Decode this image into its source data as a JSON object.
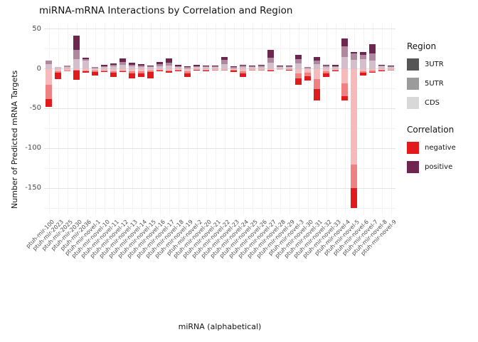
{
  "chart_data": {
    "type": "bar",
    "stacked": true,
    "title": "miRNA-mRNA Interactions by Correlation and Region",
    "xlabel": "miRNA (alphabetical)",
    "ylabel": "Number of Predicted mRNA Targets",
    "y_ticks": [
      50,
      0,
      -50,
      -100,
      -150
    ],
    "y_minor_ticks": [
      25,
      -25,
      -75,
      -125,
      -175
    ],
    "ylim": [
      -183,
      57
    ],
    "grid": true,
    "legend_position": "right",
    "categories": [
      "ptuh-mir-100",
      "ptuh-mir-2023",
      "ptuh-mir-2025",
      "ptuh-mir-2030",
      "ptuh-mir-2036",
      "ptuh-mir-novel-1",
      "ptuh-mir-novel-10",
      "ptuh-mir-novel-11",
      "ptuh-mir-novel-12",
      "ptuh-mir-novel-13",
      "ptuh-mir-novel-14",
      "ptuh-mir-novel-15",
      "ptuh-mir-novel-16",
      "ptuh-mir-novel-17",
      "ptuh-mir-novel-18",
      "ptuh-mir-novel-19",
      "ptuh-mir-novel-2",
      "ptuh-mir-novel-20",
      "ptuh-mir-novel-21",
      "ptuh-mir-novel-22",
      "ptuh-mir-novel-23",
      "ptuh-mir-novel-24",
      "ptuh-mir-novel-25",
      "ptuh-mir-novel-26",
      "ptuh-mir-novel-27",
      "ptuh-mir-novel-28",
      "ptuh-mir-novel-29",
      "ptuh-mir-novel-3",
      "ptuh-mir-novel-30",
      "ptuh-mir-novel-31",
      "ptuh-mir-novel-32",
      "ptuh-mir-novel-33",
      "ptuh-mir-novel-4",
      "ptuh-mir-novel-5",
      "ptuh-mir-novel-6",
      "ptuh-mir-novel-7",
      "ptuh-mir-novel-8",
      "ptuh-mir-novel-9"
    ],
    "series": [
      {
        "name": "positive-3UTR",
        "correlation": "positive",
        "region": "3UTR",
        "color": "#6e2550",
        "values": [
          0,
          0,
          0,
          18,
          2,
          0,
          2,
          2,
          4,
          3,
          2,
          1,
          3,
          5,
          2,
          1,
          2,
          1,
          1,
          4,
          1,
          1,
          1,
          1,
          10,
          1,
          1,
          6,
          0,
          5,
          1,
          2,
          10,
          2,
          3,
          12,
          1,
          1
        ]
      },
      {
        "name": "positive-5UTR",
        "correlation": "positive",
        "region": "5UTR",
        "color": "#af879f",
        "values": [
          4,
          0,
          2,
          12,
          2,
          1,
          1,
          2,
          4,
          2,
          2,
          1,
          3,
          4,
          1,
          1,
          1,
          1,
          1,
          5,
          1,
          2,
          1,
          2,
          6,
          1,
          1,
          5,
          1,
          4,
          2,
          1,
          13,
          8,
          6,
          9,
          1,
          1
        ]
      },
      {
        "name": "positive-CDS",
        "correlation": "positive",
        "region": "CDS",
        "color": "#d4becb",
        "values": [
          6,
          2,
          2,
          12,
          10,
          1,
          2,
          3,
          5,
          3,
          2,
          2,
          3,
          4,
          2,
          1,
          2,
          2,
          2,
          6,
          1,
          2,
          2,
          2,
          8,
          2,
          2,
          7,
          1,
          6,
          2,
          2,
          15,
          11,
          12,
          10,
          3,
          2
        ]
      },
      {
        "name": "negative-3UTR",
        "correlation": "negative",
        "region": "3UTR",
        "color": "#e31a1c",
        "values": [
          -10,
          -8,
          0,
          -12,
          -2,
          -4,
          -1,
          -5,
          -1,
          -6,
          -4,
          -8,
          -1,
          -2,
          -1,
          -4,
          -1,
          -1,
          0,
          0,
          -2,
          -4,
          0,
          0,
          -1,
          0,
          -1,
          -8,
          -6,
          -15,
          -4,
          -1,
          -6,
          -25,
          -3,
          -1,
          -1,
          0
        ]
      },
      {
        "name": "negative-5UTR",
        "correlation": "negative",
        "region": "5UTR",
        "color": "#f08182",
        "values": [
          -18,
          -2,
          -1,
          -1,
          -1,
          -2,
          -1,
          -2,
          -1,
          -3,
          -3,
          -2,
          -1,
          -1,
          -1,
          -3,
          0,
          -1,
          -1,
          -1,
          -1,
          -3,
          -1,
          -1,
          -1,
          0,
          0,
          -6,
          -4,
          -12,
          -3,
          -1,
          -16,
          -30,
          -2,
          -2,
          -1,
          -1
        ]
      },
      {
        "name": "negative-CDS",
        "correlation": "negative",
        "region": "CDS",
        "color": "#f7babb",
        "values": [
          -20,
          -3,
          -2,
          -1,
          -2,
          -2,
          -2,
          -3,
          -2,
          -3,
          -3,
          -2,
          -1,
          -2,
          -1,
          -3,
          -1,
          -1,
          -1,
          -1,
          -1,
          -3,
          -1,
          -1,
          -1,
          -1,
          -1,
          -6,
          -5,
          -13,
          -3,
          -1,
          -18,
          -120,
          -3,
          -2,
          -1,
          -1
        ]
      }
    ],
    "legend": {
      "region": {
        "title": "Region",
        "items": [
          {
            "label": "3UTR",
            "color": "#565656"
          },
          {
            "label": "5UTR",
            "color": "#9b9b9b"
          },
          {
            "label": "CDS",
            "color": "#d8d8d8"
          }
        ]
      },
      "correlation": {
        "title": "Correlation",
        "items": [
          {
            "label": "negative",
            "color": "#e31a1c"
          },
          {
            "label": "positive",
            "color": "#6e2550"
          }
        ]
      }
    }
  }
}
